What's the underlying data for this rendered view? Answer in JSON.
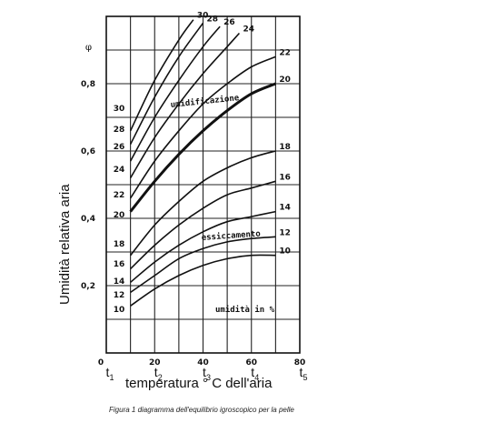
{
  "chart_data": {
    "type": "line",
    "title": "",
    "ylabel": "Umidità relativa aria",
    "y_symbol": "φ",
    "xlabel": "temperatura °  C dell'aria",
    "xlim": [
      0,
      80
    ],
    "ylim": [
      0,
      1.0
    ],
    "x_ticks": [
      "0",
      "20",
      "40",
      "60",
      "80"
    ],
    "y_ticks": [
      "0,2",
      "0,4",
      "0,6",
      "0,8"
    ],
    "t_labels": [
      "t1",
      "t2",
      "t3",
      "t4",
      "t5"
    ],
    "grid": true,
    "annotations": [
      "umidificazione",
      "essiccamento",
      "umidità in %"
    ],
    "series": [
      {
        "name": "10",
        "x": [
          10,
          20,
          30,
          40,
          50,
          60,
          70
        ],
        "y": [
          0.14,
          0.19,
          0.23,
          0.26,
          0.28,
          0.29,
          0.29
        ]
      },
      {
        "name": "12",
        "x": [
          10,
          20,
          30,
          40,
          50,
          60,
          70
        ],
        "y": [
          0.18,
          0.23,
          0.28,
          0.31,
          0.33,
          0.34,
          0.345
        ]
      },
      {
        "name": "14",
        "x": [
          10,
          20,
          30,
          40,
          50,
          60,
          70
        ],
        "y": [
          0.21,
          0.27,
          0.32,
          0.36,
          0.39,
          0.405,
          0.42
        ]
      },
      {
        "name": "16",
        "x": [
          10,
          20,
          30,
          40,
          50,
          60,
          70
        ],
        "y": [
          0.25,
          0.32,
          0.38,
          0.43,
          0.47,
          0.49,
          0.51
        ]
      },
      {
        "name": "18",
        "x": [
          10,
          20,
          30,
          40,
          50,
          60,
          70
        ],
        "y": [
          0.29,
          0.38,
          0.45,
          0.51,
          0.55,
          0.58,
          0.6
        ]
      },
      {
        "name": "20",
        "x": [
          10,
          20,
          30,
          40,
          50,
          60,
          70
        ],
        "y": [
          0.42,
          0.51,
          0.59,
          0.66,
          0.72,
          0.77,
          0.8
        ]
      },
      {
        "name": "22",
        "x": [
          10,
          20,
          30,
          40,
          50,
          60,
          70
        ],
        "y": [
          0.46,
          0.57,
          0.66,
          0.74,
          0.8,
          0.85,
          0.88
        ]
      },
      {
        "name": "24",
        "x": [
          10,
          20,
          30,
          40,
          50,
          55
        ],
        "y": [
          0.52,
          0.64,
          0.74,
          0.83,
          0.91,
          0.95
        ]
      },
      {
        "name": "26",
        "x": [
          10,
          20,
          30,
          40,
          47
        ],
        "y": [
          0.57,
          0.7,
          0.81,
          0.91,
          0.97
        ]
      },
      {
        "name": "28",
        "x": [
          10,
          20,
          30,
          40
        ],
        "y": [
          0.62,
          0.76,
          0.88,
          0.98
        ]
      },
      {
        "name": "30",
        "x": [
          10,
          20,
          30,
          36
        ],
        "y": [
          0.66,
          0.81,
          0.93,
          0.99
        ]
      }
    ],
    "left_labels": [
      "30",
      "28",
      "26",
      "24",
      "22",
      "20",
      "18",
      "16",
      "14",
      "12",
      "10"
    ]
  },
  "caption": "Figura 1 diagramma dell'equilibrio igroscopico per la pelle"
}
